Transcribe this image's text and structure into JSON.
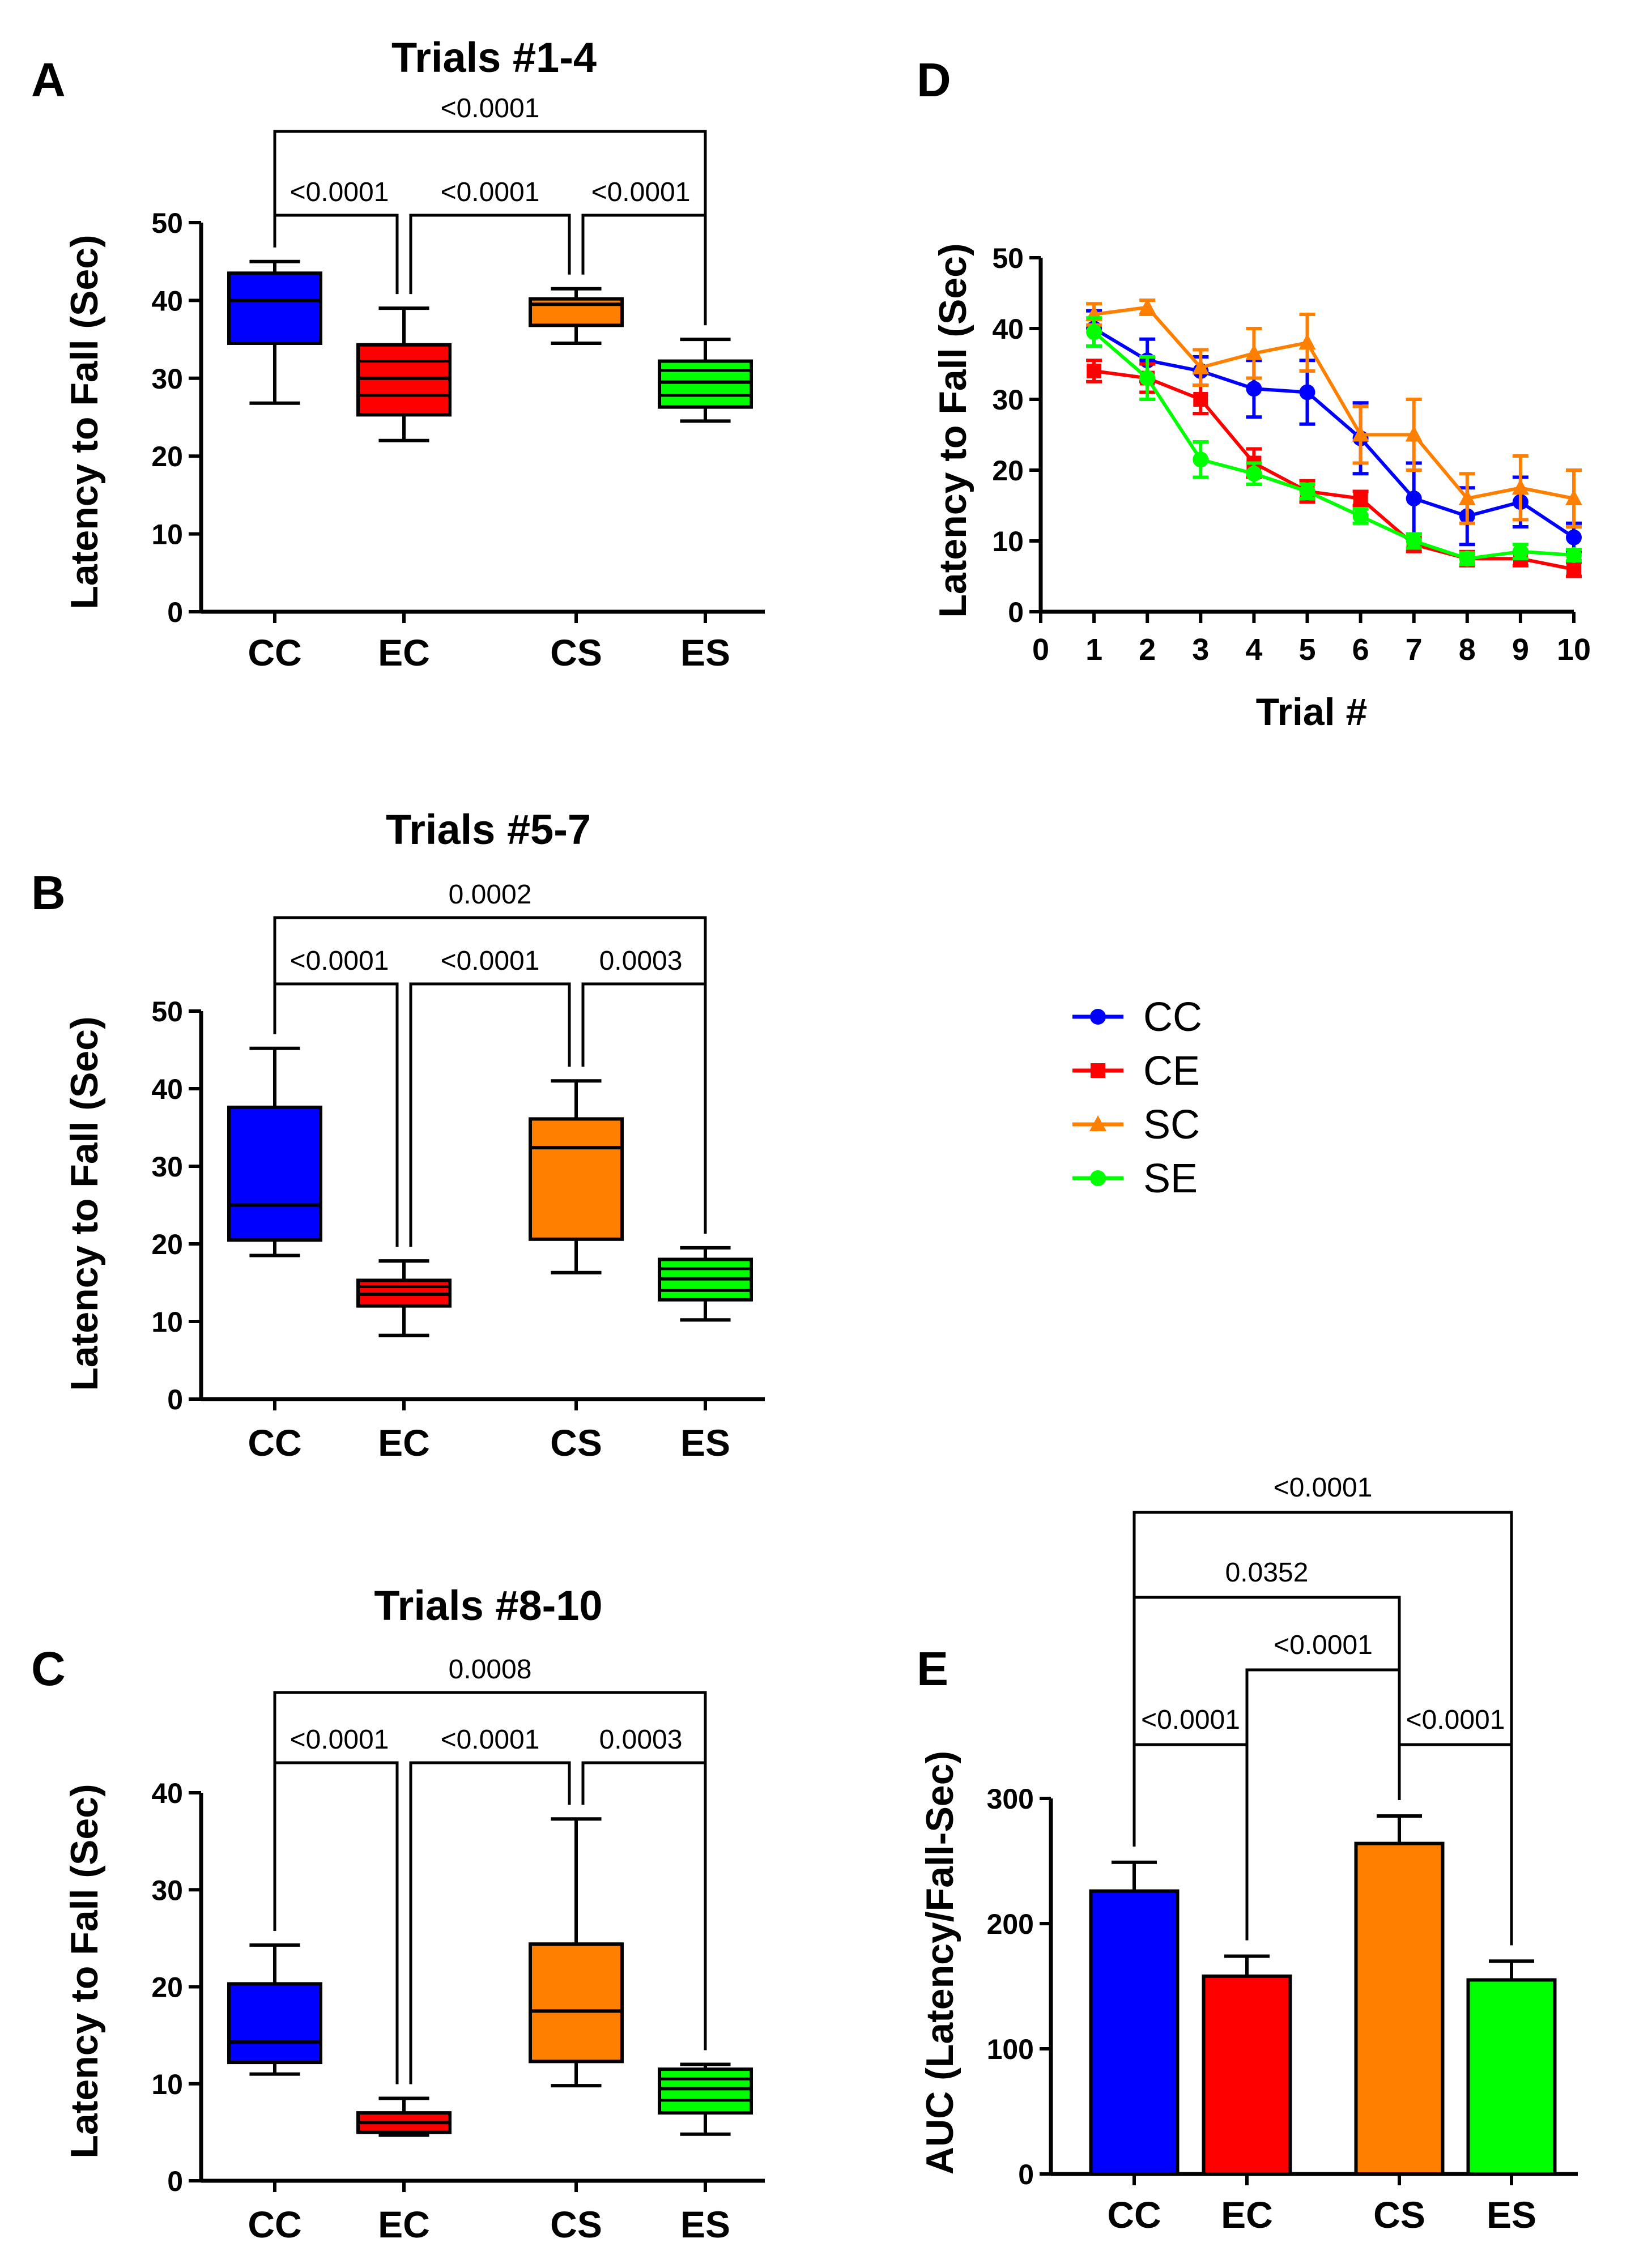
{
  "figure": {
    "colors": {
      "CC": "#0000ff",
      "EC": "#ff0000",
      "CS": "#ff8000",
      "ES": "#00ff00",
      "axis": "#000000"
    }
  },
  "chart_data": [
    {
      "id": "A",
      "panel_label": "A",
      "type": "box",
      "title": "Trials #1-4",
      "ylabel": "Latency to  Fall (Sec)",
      "ylim": [
        0,
        50
      ],
      "yticks": [
        0,
        10,
        20,
        30,
        40,
        50
      ],
      "categories": [
        "CC",
        "EC",
        "CS",
        "ES"
      ],
      "boxes": [
        {
          "name": "CC",
          "min": 26.8,
          "q1": 34.5,
          "median": 40.0,
          "q3": 43.5,
          "max": 45.0,
          "lines": []
        },
        {
          "name": "EC",
          "min": 22.0,
          "q1": 25.3,
          "median": 30.0,
          "q3": 34.3,
          "max": 39.0,
          "lines": [
            27.8,
            32.2
          ]
        },
        {
          "name": "CS",
          "min": 34.5,
          "q1": 36.8,
          "median": 39.5,
          "q3": 40.2,
          "max": 41.5,
          "lines": []
        },
        {
          "name": "ES",
          "min": 24.5,
          "q1": 26.3,
          "median": 29.5,
          "q3": 32.2,
          "max": 35.0,
          "lines": [
            27.8,
            31.0
          ]
        }
      ],
      "comparisons": [
        {
          "a": 0,
          "b": 3,
          "label": "<0.0001",
          "level": 1
        },
        {
          "a": 0,
          "b": 1,
          "label": "<0.0001",
          "level": 0
        },
        {
          "a": 1,
          "b": 2,
          "label": "<0.0001",
          "level": 0
        },
        {
          "a": 2,
          "b": 3,
          "label": "<0.0001",
          "level": 0
        }
      ]
    },
    {
      "id": "B",
      "panel_label": "B",
      "type": "box",
      "title": "Trials #5-7",
      "ylabel": "Latency to  Fall (Sec)",
      "ylim": [
        0,
        50
      ],
      "yticks": [
        0,
        10,
        20,
        30,
        40,
        50
      ],
      "categories": [
        "CC",
        "EC",
        "CS",
        "ES"
      ],
      "boxes": [
        {
          "name": "CC",
          "min": 18.5,
          "q1": 20.5,
          "median": 25.0,
          "q3": 37.6,
          "max": 45.2,
          "lines": []
        },
        {
          "name": "EC",
          "min": 8.2,
          "q1": 12.0,
          "median": 13.5,
          "q3": 15.3,
          "max": 17.8,
          "lines": [
            14.5
          ]
        },
        {
          "name": "CS",
          "min": 16.3,
          "q1": 20.6,
          "median": 32.4,
          "q3": 36.1,
          "max": 41.0,
          "lines": []
        },
        {
          "name": "ES",
          "min": 10.2,
          "q1": 12.8,
          "median": 15.5,
          "q3": 18.0,
          "max": 19.5,
          "lines": [
            14.0,
            16.8
          ]
        }
      ],
      "comparisons": [
        {
          "a": 0,
          "b": 3,
          "label": "0.0002",
          "level": 1
        },
        {
          "a": 0,
          "b": 1,
          "label": "<0.0001",
          "level": 0
        },
        {
          "a": 1,
          "b": 2,
          "label": "<0.0001",
          "level": 0
        },
        {
          "a": 2,
          "b": 3,
          "label": "0.0003",
          "level": 0
        }
      ]
    },
    {
      "id": "C",
      "panel_label": "C",
      "type": "box",
      "title": "Trials #8-10",
      "ylabel": "Latency to  Fall (Sec)",
      "ylim": [
        0,
        40
      ],
      "yticks": [
        0,
        10,
        20,
        30,
        40
      ],
      "categories": [
        "CC",
        "EC",
        "CS",
        "ES"
      ],
      "boxes": [
        {
          "name": "CC",
          "min": 11.0,
          "q1": 12.2,
          "median": 14.3,
          "q3": 20.3,
          "max": 24.3,
          "lines": []
        },
        {
          "name": "EC",
          "min": 4.7,
          "q1": 5.0,
          "median": 6.0,
          "q3": 7.0,
          "max": 8.5,
          "lines": []
        },
        {
          "name": "CS",
          "min": 9.8,
          "q1": 12.3,
          "median": 17.5,
          "q3": 24.4,
          "max": 37.3,
          "lines": []
        },
        {
          "name": "ES",
          "min": 4.8,
          "q1": 7.0,
          "median": 9.5,
          "q3": 11.5,
          "max": 12.0,
          "lines": [
            8.3,
            10.5
          ]
        }
      ],
      "comparisons": [
        {
          "a": 0,
          "b": 3,
          "label": "0.0008",
          "level": 1
        },
        {
          "a": 0,
          "b": 1,
          "label": "<0.0001",
          "level": 0
        },
        {
          "a": 1,
          "b": 2,
          "label": "<0.0001",
          "level": 0
        },
        {
          "a": 2,
          "b": 3,
          "label": "0.0003",
          "level": 0
        }
      ]
    },
    {
      "id": "D",
      "panel_label": "D",
      "type": "line",
      "xlabel": "Trial #",
      "ylabel": "Latency to  Fall (Sec)",
      "xlim": [
        0,
        10
      ],
      "xticks": [
        0,
        1,
        2,
        3,
        4,
        5,
        6,
        7,
        8,
        9,
        10
      ],
      "ylim": [
        0,
        50
      ],
      "yticks": [
        0,
        10,
        20,
        30,
        40,
        50
      ],
      "x": [
        1,
        2,
        3,
        4,
        5,
        6,
        7,
        8,
        9,
        10
      ],
      "series": [
        {
          "name": "CC",
          "marker": "circle",
          "values": [
            40.0,
            35.5,
            34.0,
            31.5,
            31.0,
            24.5,
            16.0,
            13.5,
            15.5,
            10.5
          ],
          "errors": [
            2.5,
            3.0,
            2.0,
            4.0,
            4.5,
            5.0,
            5.0,
            4.0,
            3.5,
            2.0
          ]
        },
        {
          "name": "CE",
          "marker": "square",
          "values": [
            34.0,
            33.0,
            30.0,
            21.0,
            17.0,
            16.0,
            9.5,
            7.5,
            7.5,
            6.0
          ],
          "errors": [
            1.5,
            2.0,
            2.0,
            2.0,
            1.5,
            1.0,
            1.0,
            1.0,
            1.0,
            1.0
          ]
        },
        {
          "name": "SC",
          "marker": "triangle",
          "values": [
            42.0,
            43.0,
            34.5,
            36.5,
            38.0,
            25.0,
            25.0,
            16.0,
            17.5,
            16.0
          ],
          "errors": [
            1.5,
            1.0,
            2.5,
            3.5,
            4.0,
            4.0,
            5.0,
            3.5,
            4.5,
            4.0
          ]
        },
        {
          "name": "SE",
          "marker": "circle",
          "values": [
            39.5,
            33.0,
            21.5,
            19.5,
            17.0,
            13.5,
            10.0,
            7.5,
            8.5,
            8.0
          ],
          "errors": [
            2.0,
            3.0,
            2.5,
            1.5,
            1.0,
            1.0,
            1.0,
            0.8,
            1.0,
            0.8
          ]
        }
      ],
      "legend": {
        "placement": "right",
        "entries": [
          "CC",
          "CE",
          "SC",
          "SE"
        ]
      }
    },
    {
      "id": "E",
      "panel_label": "E",
      "type": "bar",
      "ylabel": "AUC (Latency/Fall-Sec)",
      "ylim": [
        0,
        300
      ],
      "yticks": [
        0,
        100,
        200,
        300
      ],
      "categories": [
        "CC",
        "EC",
        "CS",
        "ES"
      ],
      "values": [
        226,
        158,
        264,
        155
      ],
      "errors": [
        23,
        16,
        22,
        15
      ],
      "comparisons": [
        {
          "a": 0,
          "b": 3,
          "label": "<0.0001",
          "level": 3
        },
        {
          "a": 0,
          "b": 2,
          "label": "0.0352",
          "level": 2
        },
        {
          "a": 1,
          "b": 2,
          "label": "<0.0001",
          "level": 1
        },
        {
          "a": 0,
          "b": 1,
          "label": "<0.0001",
          "level": 0
        },
        {
          "a": 2,
          "b": 3,
          "label": "<0.0001",
          "level": 0
        }
      ]
    }
  ]
}
